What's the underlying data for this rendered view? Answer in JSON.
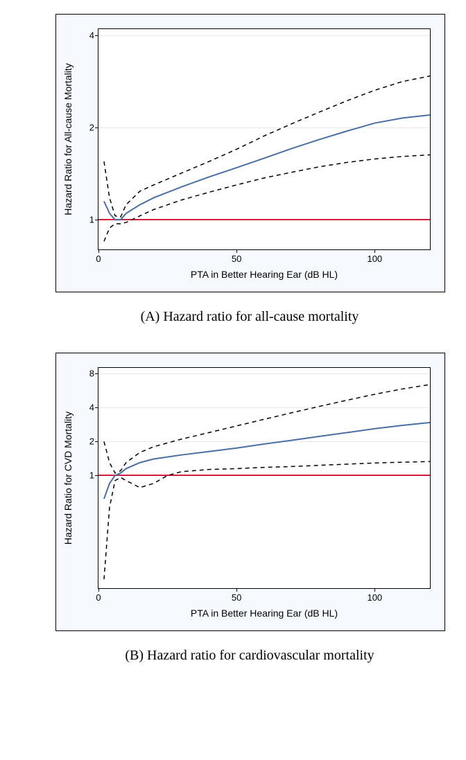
{
  "chartA": {
    "type": "line",
    "background_color": "#f6f9fd",
    "plot_background": "#ffffff",
    "border_color": "#000000",
    "grid_color": "#e8e8e8",
    "xlabel": "PTA in Better Hearing Ear (dB HL)",
    "ylabel": "Hazard Ratio for All-cause Mortality",
    "label_fontsize": 14,
    "tick_fontsize": 13,
    "xlim": [
      0,
      120
    ],
    "xticks": [
      0,
      50,
      100
    ],
    "yscale": "log",
    "ylim_log": [
      0.8,
      4.2
    ],
    "yticks": [
      1,
      2,
      4
    ],
    "ref_line_y": 1,
    "ref_line_color": "#d11e3d",
    "ref_line_width": 2,
    "main_line": {
      "color": "#4a6fa5",
      "width": 2,
      "dash": "none",
      "x": [
        2,
        4,
        6,
        8,
        10,
        15,
        20,
        30,
        40,
        50,
        60,
        70,
        80,
        90,
        100,
        110,
        120
      ],
      "y": [
        1.15,
        1.05,
        1.0,
        1.0,
        1.05,
        1.12,
        1.18,
        1.28,
        1.38,
        1.48,
        1.59,
        1.71,
        1.83,
        1.95,
        2.07,
        2.15,
        2.2
      ]
    },
    "upper_ci": {
      "color": "#000000",
      "width": 1.5,
      "dash": "6,5",
      "x": [
        2,
        4,
        6,
        8,
        10,
        15,
        20,
        30,
        40,
        50,
        60,
        70,
        80,
        90,
        100,
        110,
        120
      ],
      "y": [
        1.55,
        1.18,
        1.03,
        1.02,
        1.12,
        1.24,
        1.3,
        1.42,
        1.55,
        1.7,
        1.88,
        2.06,
        2.25,
        2.45,
        2.65,
        2.83,
        2.95
      ]
    },
    "lower_ci": {
      "color": "#000000",
      "width": 1.5,
      "dash": "6,5",
      "x": [
        2,
        4,
        6,
        8,
        10,
        15,
        20,
        30,
        40,
        50,
        60,
        70,
        80,
        90,
        100,
        110,
        120
      ],
      "y": [
        0.85,
        0.94,
        0.97,
        0.97,
        0.98,
        1.03,
        1.08,
        1.16,
        1.23,
        1.3,
        1.37,
        1.43,
        1.49,
        1.54,
        1.58,
        1.61,
        1.63
      ]
    },
    "caption": "(A) Hazard ratio for all-cause mortality"
  },
  "chartB": {
    "type": "line",
    "background_color": "#f6f9fd",
    "plot_background": "#ffffff",
    "border_color": "#000000",
    "grid_color": "#e8e8e8",
    "xlabel": "PTA in Better Hearing Ear (dB HL)",
    "ylabel": "Hazard Ratio for CVD Mortality",
    "label_fontsize": 14,
    "tick_fontsize": 13,
    "xlim": [
      0,
      120
    ],
    "xticks": [
      0,
      50,
      100
    ],
    "yscale": "log",
    "ylim_log": [
      0.1,
      9
    ],
    "yticks": [
      1,
      2,
      4,
      8
    ],
    "ref_line_y": 1,
    "ref_line_color": "#d11e3d",
    "ref_line_width": 2,
    "main_line": {
      "color": "#4a6fa5",
      "width": 2,
      "dash": "none",
      "x": [
        2,
        4,
        6,
        8,
        10,
        15,
        20,
        30,
        40,
        50,
        60,
        70,
        80,
        90,
        100,
        110,
        120
      ],
      "y": [
        0.62,
        0.85,
        1.0,
        1.05,
        1.15,
        1.3,
        1.4,
        1.52,
        1.63,
        1.75,
        1.9,
        2.05,
        2.22,
        2.4,
        2.6,
        2.78,
        2.95
      ]
    },
    "upper_ci": {
      "color": "#000000",
      "width": 1.5,
      "dash": "6,5",
      "x": [
        2,
        4,
        6,
        8,
        10,
        15,
        20,
        30,
        40,
        50,
        60,
        70,
        80,
        90,
        100,
        110,
        120
      ],
      "y": [
        2.0,
        1.3,
        1.05,
        1.1,
        1.3,
        1.6,
        1.8,
        2.1,
        2.4,
        2.75,
        3.15,
        3.6,
        4.1,
        4.65,
        5.25,
        5.85,
        6.4
      ]
    },
    "lower_ci": {
      "color": "#000000",
      "width": 1.5,
      "dash": "6,5",
      "x": [
        2,
        4,
        6,
        8,
        10,
        15,
        20,
        25,
        30,
        40,
        50,
        60,
        70,
        80,
        90,
        100,
        110,
        120
      ],
      "y": [
        0.12,
        0.52,
        0.9,
        0.96,
        0.9,
        0.78,
        0.85,
        1.0,
        1.08,
        1.13,
        1.15,
        1.18,
        1.2,
        1.23,
        1.26,
        1.29,
        1.31,
        1.33
      ]
    },
    "caption": "(B) Hazard ratio for cardiovascular mortality"
  }
}
